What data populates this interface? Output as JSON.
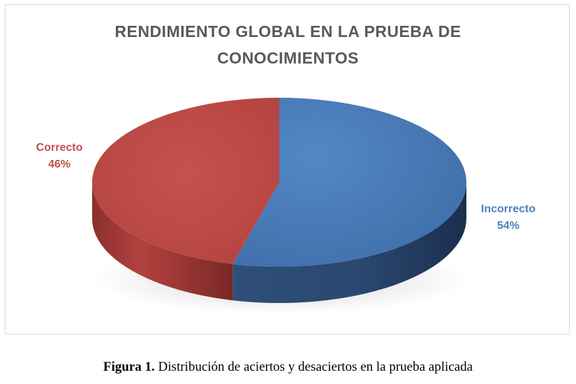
{
  "chart_data": {
    "type": "pie",
    "style": "3d",
    "title_lines": [
      "RENDIMIENTO GLOBAL EN LA PRUEBA DE",
      "CONOCIMIENTOS"
    ],
    "slices": [
      {
        "label": "Correcto",
        "value": 46,
        "value_label": "46%",
        "color": "#c0504d"
      },
      {
        "label": "Incorrecto",
        "value": 54,
        "value_label": "54%",
        "color": "#4f81bd"
      }
    ],
    "legend": "none"
  },
  "caption": {
    "prefix": "Figura 1.",
    "text": " Distribución de aciertos y desaciertos en la prueba aplicada"
  }
}
